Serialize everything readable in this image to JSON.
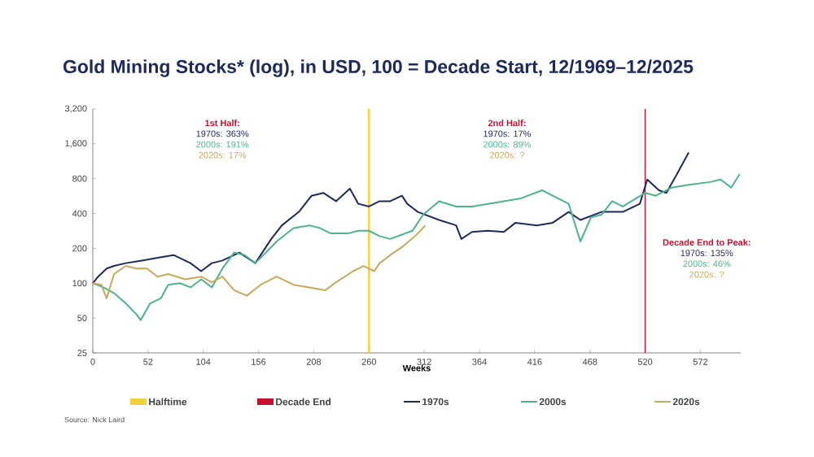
{
  "chart_data": {
    "type": "line",
    "title": "Gold Mining Stocks* (log), in USD, 100 = Decade Start, 12/1969–12/2025",
    "xlabel": "Weeks",
    "log": "y",
    "legend": "bottom",
    "grid": false,
    "xlim": [
      0,
      610
    ],
    "xticks": [
      0,
      52,
      104,
      156,
      208,
      260,
      312,
      364,
      416,
      468,
      520,
      572
    ],
    "ylim": [
      25,
      3200
    ],
    "yticks": [
      25,
      50,
      100,
      200,
      400,
      800,
      {
        "value": 1600,
        "label": "1,600"
      },
      {
        "value": 3200,
        "label": "3,200"
      }
    ],
    "ref_lines": [
      {
        "axis": "x",
        "value": 260,
        "label": "Halftime",
        "color": "#f2d23c"
      },
      {
        "axis": "x",
        "value": 520,
        "label": "Decade End",
        "color": "#c8102e"
      }
    ],
    "series": [
      {
        "name": "1970s",
        "color": "#1f2a5c",
        "x": [
          0,
          5,
          13,
          20,
          31,
          46,
          61,
          76,
          92,
          102,
          112,
          122,
          138,
          153,
          168,
          178,
          194,
          206,
          217,
          229,
          242,
          250,
          260,
          270,
          280,
          291,
          296,
          306,
          326,
          342,
          347,
          357,
          372,
          387,
          398,
          418,
          433,
          448,
          459,
          479,
          499,
          515,
          522,
          533,
          540,
          550,
          561
        ],
        "values": [
          100,
          114,
          134,
          141,
          149,
          157,
          166,
          175,
          149,
          127,
          149,
          157,
          184,
          149,
          241,
          316,
          413,
          570,
          603,
          511,
          656,
          485,
          460,
          511,
          511,
          570,
          485,
          413,
          352,
          316,
          241,
          277,
          284,
          277,
          333,
          316,
          333,
          413,
          352,
          413,
          413,
          485,
          786,
          635,
          603,
          877,
          1346
        ]
      },
      {
        "name": "2000s",
        "color": "#4cb38c",
        "x": [
          0,
          10,
          20,
          31,
          41,
          45,
          54,
          64,
          71,
          82,
          92,
          102,
          112,
          122,
          133,
          143,
          153,
          163,
          173,
          189,
          204,
          214,
          224,
          240,
          250,
          260,
          270,
          280,
          301,
          311,
          326,
          342,
          357,
          372,
          387,
          403,
          423,
          433,
          448,
          459,
          469,
          479,
          489,
          499,
          520,
          530,
          545,
          561,
          581,
          591,
          601,
          609
        ],
        "values": [
          100,
          92,
          82,
          67,
          54,
          48,
          67,
          74,
          97,
          100,
          92,
          108,
          92,
          134,
          184,
          175,
          149,
          184,
          229,
          299,
          316,
          299,
          269,
          269,
          284,
          284,
          255,
          241,
          284,
          391,
          511,
          460,
          460,
          485,
          511,
          541,
          635,
          570,
          485,
          229,
          371,
          391,
          511,
          460,
          603,
          570,
          670,
          708,
          748,
          786,
          670,
          877
        ]
      },
      {
        "name": "2020s",
        "color": "#c8a85a",
        "x": [
          0,
          8,
          13,
          20,
          31,
          41,
          51,
          61,
          71,
          87,
          102,
          112,
          122,
          133,
          145,
          158,
          173,
          189,
          204,
          219,
          229,
          245,
          255,
          265,
          270,
          280,
          291,
          300,
          306,
          313
        ],
        "values": [
          100,
          97,
          74,
          120,
          141,
          134,
          134,
          114,
          120,
          108,
          114,
          102,
          114,
          87,
          78,
          97,
          114,
          97,
          92,
          87,
          102,
          127,
          141,
          127,
          149,
          175,
          205,
          241,
          269,
          316
        ]
      }
    ],
    "annotations": [
      "1st Half:",
      "1970s: 363%",
      "2000s: 191%",
      "2020s: 17%",
      "2nd Half:",
      "1970s: 17%",
      "2000s: 89%",
      "2020s: ?",
      "Decade End to Peak:",
      "1970s: 135%",
      "2000s: 46%",
      "2020s: ?",
      "Source: Nick Laird"
    ]
  }
}
